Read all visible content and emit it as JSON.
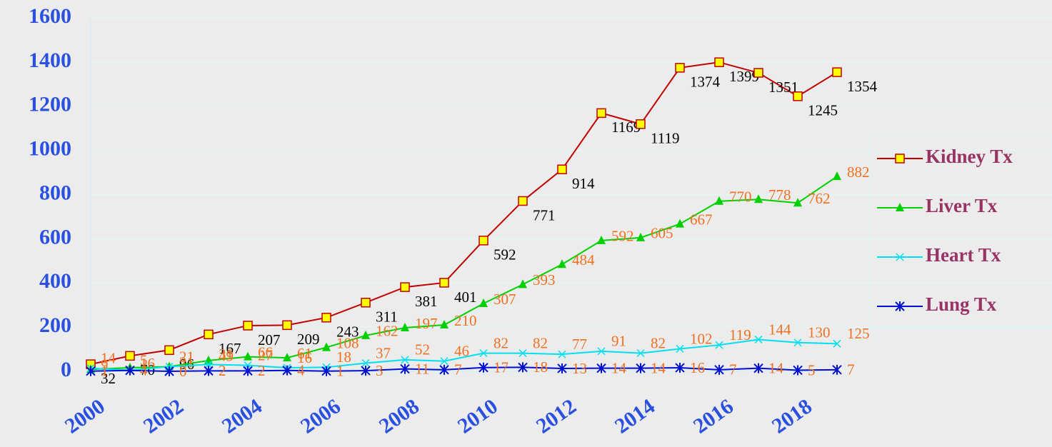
{
  "chart_data": {
    "type": "line",
    "x": [
      2000,
      2001,
      2002,
      2003,
      2004,
      2005,
      2006,
      2007,
      2008,
      2009,
      2010,
      2011,
      2012,
      2013,
      2014,
      2015,
      2016,
      2017,
      2018,
      2019
    ],
    "xlim": [
      2000,
      2019
    ],
    "xticks": [
      2000,
      2002,
      2004,
      2006,
      2008,
      2010,
      2012,
      2014,
      2016,
      2018
    ],
    "ylim": [
      0,
      1600
    ],
    "yticks": [
      0,
      200,
      400,
      600,
      800,
      1000,
      1200,
      1400,
      1600
    ],
    "grid": true,
    "legend": "right",
    "series": [
      {
        "name": "Kidney Tx",
        "color": "#c00000",
        "marker": "square",
        "label_color": "#000000",
        "values": [
          32,
          70,
          96,
          167,
          207,
          209,
          243,
          311,
          381,
          401,
          592,
          771,
          914,
          1169,
          1119,
          1374,
          1399,
          1351,
          1245,
          1354
        ]
      },
      {
        "name": "Liver Tx",
        "color": "#00d000",
        "marker": "triangle",
        "label_color": "#f07020",
        "values": [
          9,
          16,
          21,
          49,
          66,
          61,
          108,
          162,
          197,
          210,
          307,
          393,
          484,
          592,
          605,
          667,
          770,
          778,
          762,
          882
        ]
      },
      {
        "name": "Heart Tx",
        "color": "#00e0f0",
        "marker": "x",
        "label_color": "#f07020",
        "values": [
          14,
          5,
          21,
          31,
          27,
          16,
          18,
          37,
          52,
          46,
          82,
          82,
          77,
          91,
          82,
          102,
          119,
          144,
          130,
          125
        ]
      },
      {
        "name": "Lung Tx",
        "color": "#0010d0",
        "marker": "star",
        "label_color": "#f07020",
        "values": [
          1,
          4,
          0,
          2,
          2,
          4,
          1,
          3,
          11,
          7,
          17,
          18,
          13,
          14,
          14,
          16,
          7,
          14,
          5,
          7
        ]
      }
    ]
  }
}
